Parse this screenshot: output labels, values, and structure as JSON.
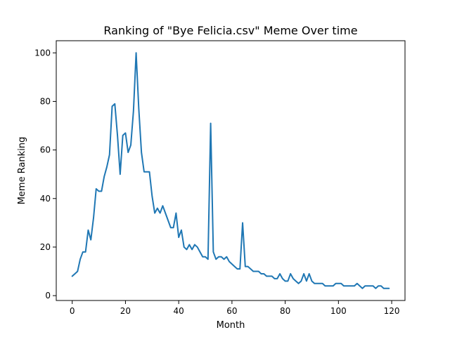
{
  "chart_data": {
    "type": "line",
    "title": "Ranking of \"Bye Felicia.csv\" Meme Over time",
    "xlabel": "Month",
    "ylabel": "Meme Ranking",
    "xlim": [
      -6,
      125
    ],
    "ylim": [
      -2,
      105
    ],
    "xticks": [
      0,
      20,
      40,
      60,
      80,
      100,
      120
    ],
    "yticks": [
      0,
      20,
      40,
      60,
      80,
      100
    ],
    "grid": false,
    "series": [
      {
        "color": "#1f77b4",
        "x": [
          0,
          1,
          2,
          3,
          4,
          5,
          6,
          7,
          8,
          9,
          10,
          11,
          12,
          13,
          14,
          15,
          16,
          17,
          18,
          19,
          20,
          21,
          22,
          23,
          24,
          25,
          26,
          27,
          28,
          29,
          30,
          31,
          32,
          33,
          34,
          35,
          36,
          37,
          38,
          39,
          40,
          41,
          42,
          43,
          44,
          45,
          46,
          47,
          48,
          49,
          50,
          51,
          52,
          53,
          54,
          55,
          56,
          57,
          58,
          59,
          60,
          61,
          62,
          63,
          64,
          65,
          66,
          67,
          68,
          69,
          70,
          71,
          72,
          73,
          74,
          75,
          76,
          77,
          78,
          79,
          80,
          81,
          82,
          83,
          84,
          85,
          86,
          87,
          88,
          89,
          90,
          91,
          92,
          93,
          94,
          95,
          96,
          97,
          98,
          99,
          100,
          101,
          102,
          103,
          104,
          105,
          106,
          107,
          108,
          109,
          110,
          111,
          112,
          113,
          114,
          115,
          116,
          117,
          118,
          119
        ],
        "y": [
          8,
          9,
          10,
          15,
          18,
          18,
          27,
          23,
          32,
          44,
          43,
          43,
          49,
          53,
          58,
          78,
          79,
          66,
          50,
          66,
          67,
          59,
          62,
          76,
          100,
          77,
          59,
          51,
          51,
          51,
          41,
          34,
          36,
          34,
          37,
          34,
          31,
          28,
          28,
          34,
          24,
          27,
          20,
          19,
          21,
          19,
          21,
          20,
          18,
          16,
          16,
          15,
          71,
          18,
          15,
          16,
          16,
          15,
          16,
          14,
          13,
          12,
          11,
          11,
          30,
          12,
          12,
          11,
          10,
          10,
          10,
          9,
          9,
          8,
          8,
          8,
          7,
          7,
          9,
          7,
          6,
          6,
          9,
          7,
          6,
          5,
          6,
          9,
          6,
          9,
          6,
          5,
          5,
          5,
          5,
          4,
          4,
          4,
          4,
          5,
          5,
          5,
          4,
          4,
          4,
          4,
          4,
          5,
          4,
          3,
          4,
          4,
          4,
          4,
          3,
          4,
          4,
          3,
          3,
          3
        ]
      }
    ]
  }
}
